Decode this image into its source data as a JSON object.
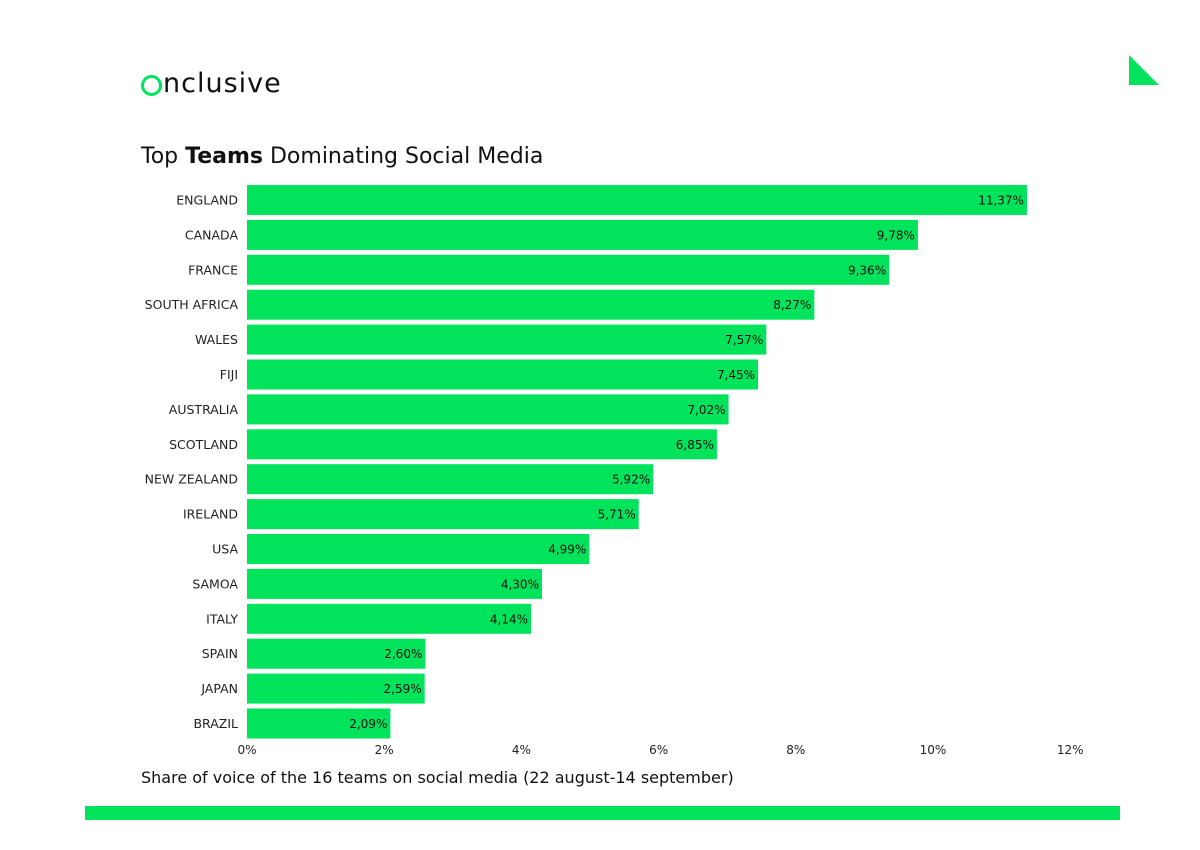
{
  "brand": {
    "logo_first": "O",
    "logo_rest": "nclusive",
    "accent": "#00e35b"
  },
  "header": {
    "title_pre": "Top ",
    "title_bold": "Teams",
    "title_post": " Dominating Social Media"
  },
  "caption": "Share of voice of the 16 teams on social media (22 august-14 september)",
  "chart_data": {
    "type": "bar",
    "orientation": "horizontal",
    "categories": [
      "ENGLAND",
      "CANADA",
      "FRANCE",
      "SOUTH AFRICA",
      "WALES",
      "FIJI",
      "AUSTRALIA",
      "SCOTLAND",
      "NEW ZEALAND",
      "IRELAND",
      "USA",
      "SAMOA",
      "ITALY",
      "SPAIN",
      "JAPAN",
      "BRAZIL"
    ],
    "values": [
      11.37,
      9.78,
      9.36,
      8.27,
      7.57,
      7.45,
      7.02,
      6.85,
      5.92,
      5.71,
      4.99,
      4.3,
      4.14,
      2.6,
      2.59,
      2.09
    ],
    "value_labels": [
      "11,37%",
      "9,78%",
      "9,36%",
      "8,27%",
      "7,57%",
      "7,45%",
      "7,02%",
      "6,85%",
      "5,92%",
      "5,71%",
      "4,99%",
      "4,30%",
      "4,14%",
      "2,60%",
      "2,59%",
      "2,09%"
    ],
    "xlim": [
      0,
      12
    ],
    "xticks": [
      0,
      2,
      4,
      6,
      8,
      10,
      12
    ],
    "xtick_labels": [
      "0%",
      "2%",
      "4%",
      "6%",
      "8%",
      "10%",
      "12%"
    ],
    "grid": false,
    "bar_color": "#00e35b"
  }
}
